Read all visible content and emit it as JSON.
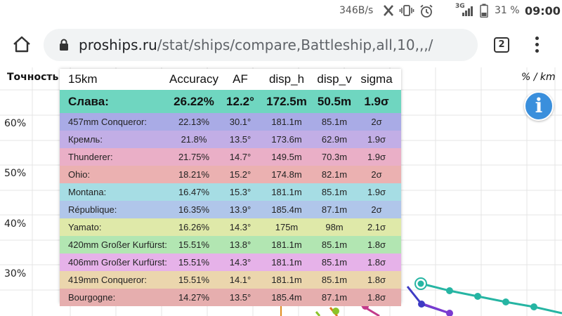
{
  "status_bar": {
    "speed": "346B/s",
    "network": "3G",
    "battery": "31 %",
    "time": "09:00"
  },
  "browser": {
    "url_domain": "proships.ru",
    "url_path": "/stat/ships/compare,Battleship,all,10,,,/",
    "tabs_count": "2"
  },
  "chart": {
    "ylabel": "Точность",
    "unit": "% / km",
    "yticks": [
      "60%",
      "50%",
      "40%",
      "30%"
    ],
    "info_glyph": "i"
  },
  "tooltip": {
    "columns": [
      "15km",
      "Accuracy",
      "AF",
      "disp_h",
      "disp_v",
      "sigma"
    ],
    "highlight": {
      "name": "Слава:",
      "accuracy": "26.22%",
      "af": "12.2°",
      "disp_h": "172.5m",
      "disp_v": "50.5m",
      "sigma": "1.9σ",
      "color": "#6fd6c0"
    },
    "rows": [
      {
        "name": "457mm Conqueror:",
        "accuracy": "22.13%",
        "af": "30.1°",
        "disp_h": "181.1m",
        "disp_v": "85.1m",
        "sigma": "2σ",
        "color": "#a9abe6"
      },
      {
        "name": "Кремль:",
        "accuracy": "21.8%",
        "af": "13.5°",
        "disp_h": "173.6m",
        "disp_v": "62.9m",
        "sigma": "1.9σ",
        "color": "#c2aee6"
      },
      {
        "name": "Thunderer:",
        "accuracy": "21.75%",
        "af": "14.7°",
        "disp_h": "149.5m",
        "disp_v": "70.3m",
        "sigma": "1.9σ",
        "color": "#eaafc7"
      },
      {
        "name": "Ohio:",
        "accuracy": "18.21%",
        "af": "15.2°",
        "disp_h": "174.8m",
        "disp_v": "82.1m",
        "sigma": "2σ",
        "color": "#ebb1b1"
      },
      {
        "name": "Montana:",
        "accuracy": "16.47%",
        "af": "15.3°",
        "disp_h": "181.1m",
        "disp_v": "85.1m",
        "sigma": "1.9σ",
        "color": "#a6dde4"
      },
      {
        "name": "République:",
        "accuracy": "16.35%",
        "af": "13.9°",
        "disp_h": "185.4m",
        "disp_v": "87.1m",
        "sigma": "2σ",
        "color": "#b0c6ea"
      },
      {
        "name": "Yamato:",
        "accuracy": "16.26%",
        "af": "14.3°",
        "disp_h": "175m",
        "disp_v": "98m",
        "sigma": "2.1σ",
        "color": "#dfe9a9"
      },
      {
        "name": "420mm Großer Kurfürst:",
        "accuracy": "15.51%",
        "af": "13.8°",
        "disp_h": "181.1m",
        "disp_v": "85.1m",
        "sigma": "1.8σ",
        "color": "#b2e6b2"
      },
      {
        "name": "406mm Großer Kurfürst:",
        "accuracy": "15.51%",
        "af": "14.3°",
        "disp_h": "181.1m",
        "disp_v": "85.1m",
        "sigma": "1.8σ",
        "color": "#e6b2e9"
      },
      {
        "name": "419mm Conqueror:",
        "accuracy": "15.51%",
        "af": "14.1°",
        "disp_h": "181.1m",
        "disp_v": "85.1m",
        "sigma": "1.8σ",
        "color": "#ebd6ad"
      },
      {
        "name": "Bourgogne:",
        "accuracy": "14.27%",
        "af": "13.5°",
        "disp_h": "185.4m",
        "disp_v": "87.1m",
        "sigma": "1.8σ",
        "color": "#e6aeae"
      }
    ]
  }
}
